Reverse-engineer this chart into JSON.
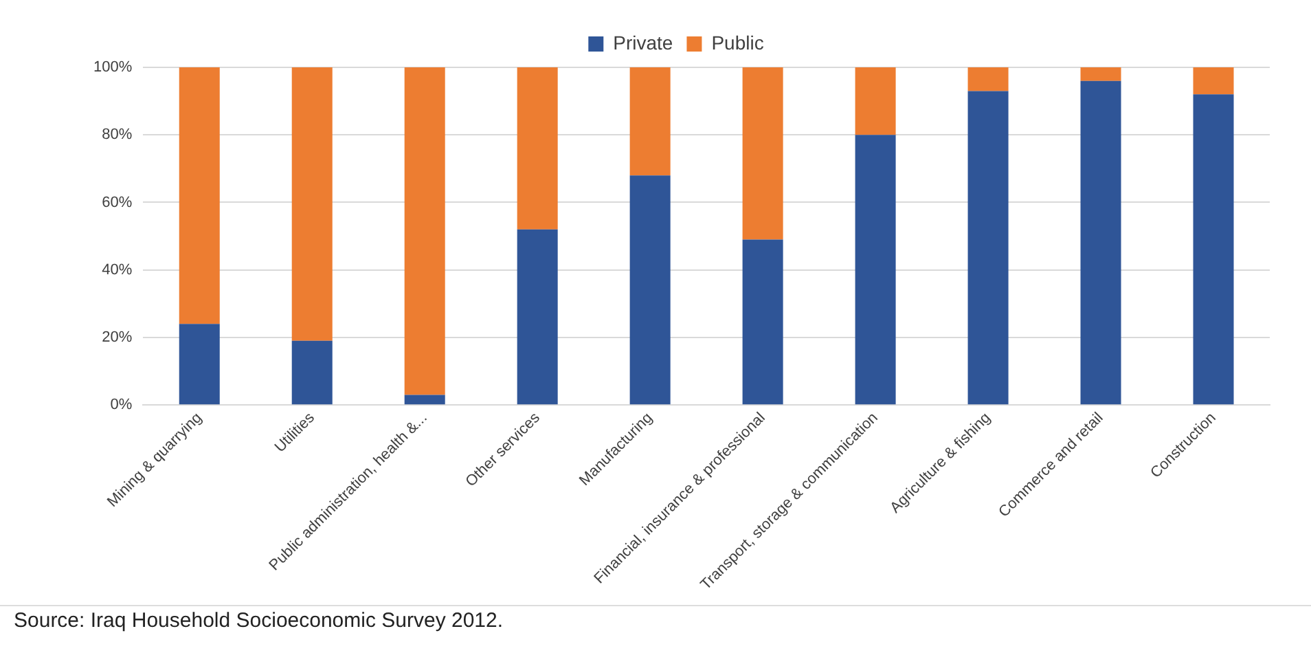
{
  "chart_data": {
    "type": "bar",
    "stacked": true,
    "categories": [
      "Mining & quarrying",
      "Utilities",
      "Public administration, health &...",
      "Other services",
      "Manufacturing",
      "Financial, insurance & professional",
      "Transport, storage & communication",
      "Agriculture & fishing",
      "Commerce and retail",
      "Construction"
    ],
    "series": [
      {
        "name": "Private",
        "color": "#2f5597",
        "values": [
          24,
          19,
          3,
          52,
          68,
          49,
          80,
          93,
          96,
          92
        ]
      },
      {
        "name": "Public",
        "color": "#ed7d31",
        "values": [
          76,
          81,
          97,
          48,
          32,
          51,
          20,
          7,
          4,
          8
        ]
      }
    ],
    "ylim": [
      0,
      100
    ],
    "yticks": [
      {
        "value": 0,
        "label": "0%"
      },
      {
        "value": 20,
        "label": "20%"
      },
      {
        "value": 40,
        "label": "40%"
      },
      {
        "value": 60,
        "label": "60%"
      },
      {
        "value": 80,
        "label": "80%"
      },
      {
        "value": 100,
        "label": "100%"
      }
    ],
    "grid": "y",
    "legend": "top",
    "annotations": [
      "Source: Iraq Household Socioeconomic Survey 2012."
    ]
  }
}
